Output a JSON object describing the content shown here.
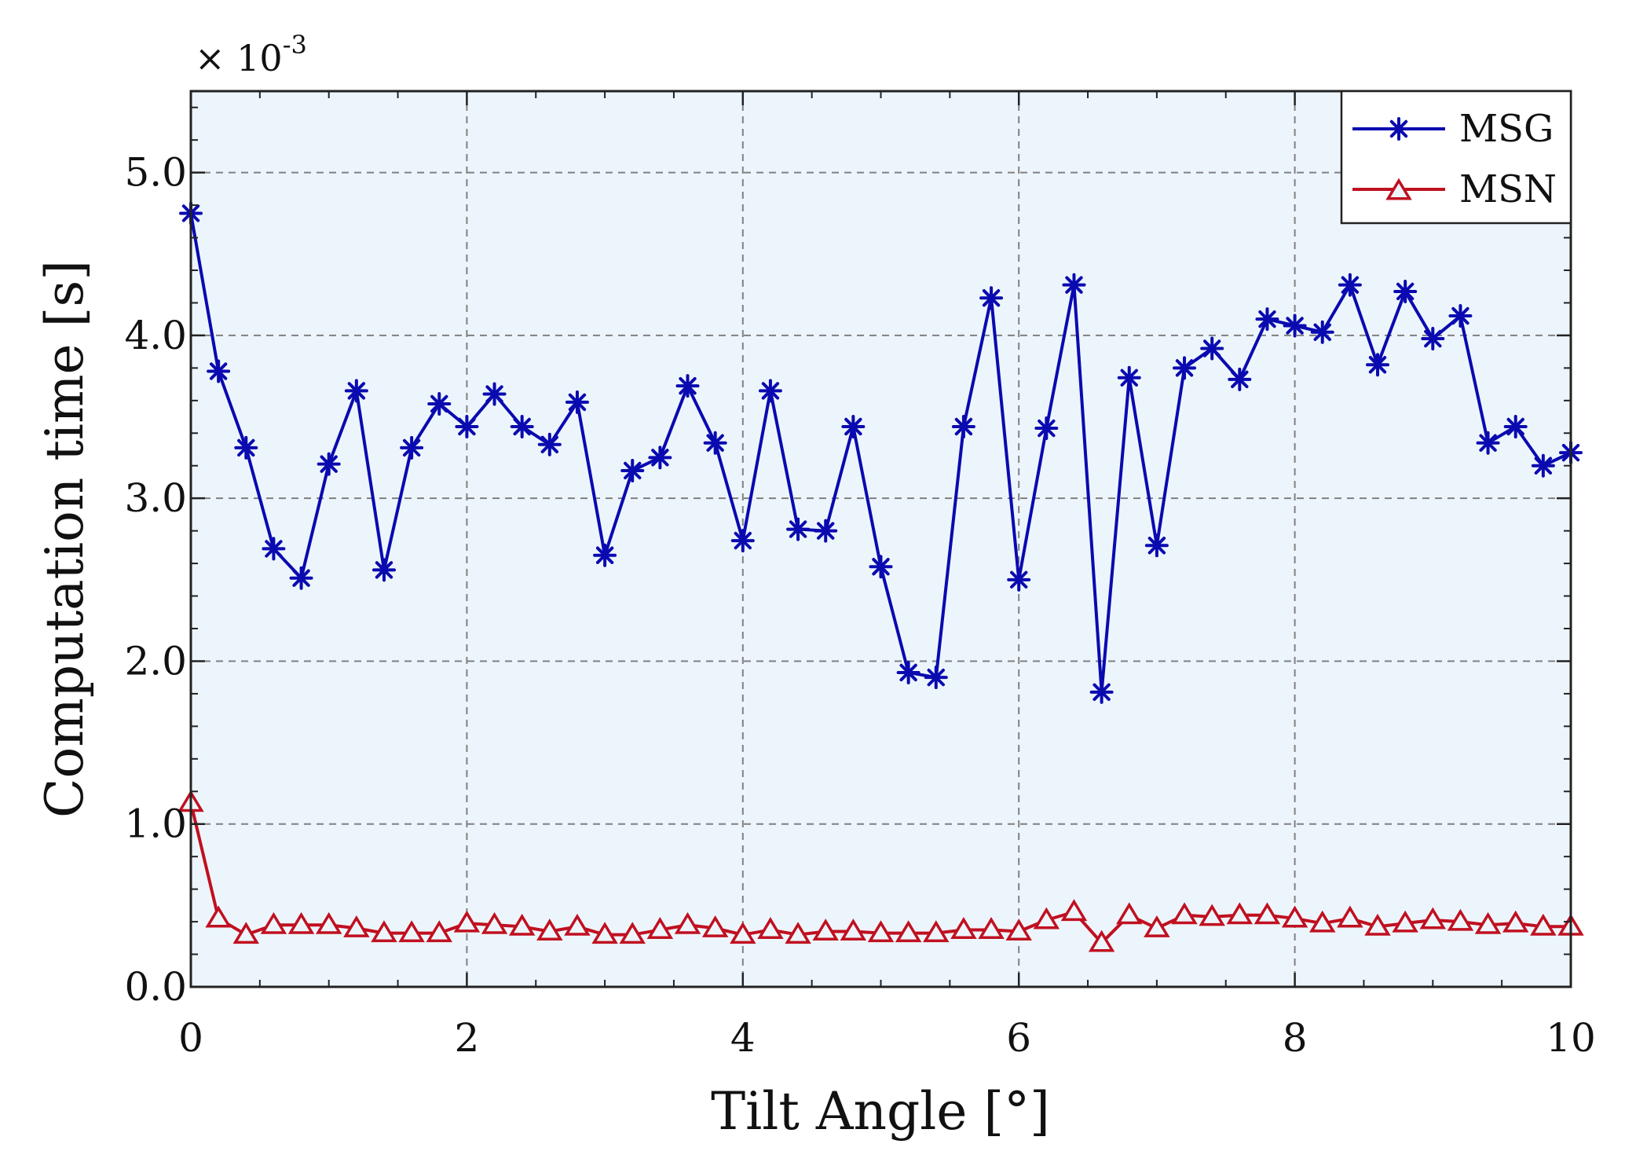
{
  "chart_data": {
    "type": "line",
    "xlabel": "Tilt Angle [°]",
    "ylabel": "Computation time [s]",
    "y_multiplier": "× 10",
    "y_exponent": "-3",
    "xlim": [
      0,
      10
    ],
    "ylim": [
      0,
      5.5
    ],
    "x_ticks": [
      0,
      2,
      4,
      6,
      8,
      10
    ],
    "x_tick_labels": [
      "0",
      "2",
      "4",
      "6",
      "8",
      "10"
    ],
    "y_ticks": [
      0,
      1,
      2,
      3,
      4,
      5
    ],
    "y_tick_labels": [
      "0.0",
      "1.0",
      "2.0",
      "3.0",
      "4.0",
      "5.0"
    ],
    "grid": true,
    "legend_position": "top-right",
    "x": [
      0,
      0.2,
      0.4,
      0.6,
      0.8,
      1.0,
      1.2,
      1.4,
      1.6,
      1.8,
      2.0,
      2.2,
      2.4,
      2.6,
      2.8,
      3.0,
      3.2,
      3.4,
      3.6,
      3.8,
      4.0,
      4.2,
      4.4,
      4.6,
      4.8,
      5.0,
      5.2,
      5.4,
      5.6,
      5.8,
      6.0,
      6.2,
      6.4,
      6.6,
      6.8,
      7.0,
      7.2,
      7.4,
      7.6,
      7.8,
      8.0,
      8.2,
      8.4,
      8.6,
      8.8,
      9.0,
      9.2,
      9.4,
      9.6,
      9.8,
      10.0
    ],
    "series": [
      {
        "name": "MSG",
        "color": "#0a0ab0",
        "marker": "asterisk",
        "values": [
          4.75,
          3.78,
          3.31,
          2.69,
          2.51,
          3.21,
          3.66,
          2.56,
          3.31,
          3.58,
          3.44,
          3.64,
          3.44,
          3.33,
          3.59,
          2.65,
          3.17,
          3.25,
          3.69,
          3.34,
          2.74,
          3.66,
          2.81,
          2.8,
          3.44,
          2.58,
          1.93,
          1.9,
          3.44,
          4.23,
          2.5,
          3.43,
          4.31,
          1.81,
          3.74,
          2.71,
          3.8,
          3.92,
          3.73,
          4.1,
          4.06,
          4.02,
          4.31,
          3.82,
          4.27,
          3.98,
          4.12,
          3.34,
          3.44,
          3.2,
          3.28
        ]
      },
      {
        "name": "MSN",
        "color": "#c01020",
        "marker": "triangle",
        "values": [
          1.13,
          0.42,
          0.32,
          0.38,
          0.38,
          0.38,
          0.36,
          0.33,
          0.33,
          0.33,
          0.39,
          0.38,
          0.37,
          0.34,
          0.37,
          0.32,
          0.32,
          0.35,
          0.38,
          0.36,
          0.32,
          0.35,
          0.32,
          0.34,
          0.34,
          0.33,
          0.33,
          0.33,
          0.35,
          0.35,
          0.34,
          0.41,
          0.46,
          0.27,
          0.44,
          0.36,
          0.44,
          0.43,
          0.44,
          0.44,
          0.42,
          0.39,
          0.42,
          0.37,
          0.39,
          0.41,
          0.4,
          0.38,
          0.39,
          0.37,
          0.37
        ]
      }
    ]
  }
}
